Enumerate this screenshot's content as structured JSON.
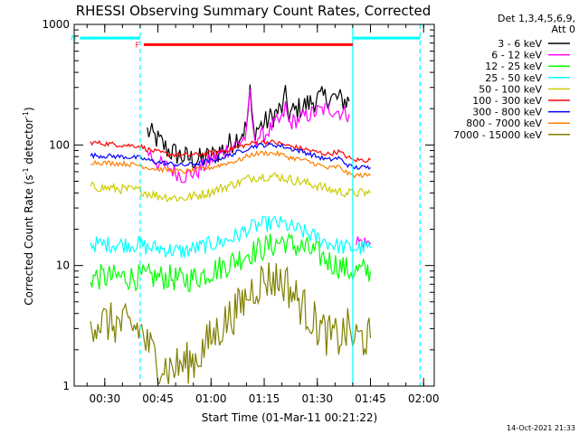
{
  "chart_data": {
    "type": "line",
    "title": "RHESSI Observing Summary Count Rates, Corrected",
    "xlabel": "Start Time (01-Mar-11 00:21:22)",
    "ylabel_prefix": "Corrected Count Rate (s",
    "ylabel_sup1": "-1",
    "ylabel_mid": " detector",
    "ylabel_sup2": "-1",
    "ylabel_suffix": ")",
    "xlim": [
      "00:21:22",
      "02:03:00"
    ],
    "ylim": [
      1,
      1000
    ],
    "yscale": "log",
    "xticks": [
      "00:30",
      "00:45",
      "01:00",
      "01:15",
      "01:30",
      "01:45",
      "02:00"
    ],
    "yticks": [
      {
        "label": "1000",
        "value": 1000
      },
      {
        "label": "100",
        "value": 100
      },
      {
        "label": "10",
        "value": 10
      },
      {
        "label": "1",
        "value": 1
      }
    ],
    "legend_header": [
      "Det 1,3,4,5,6,9,",
      "Att 0"
    ],
    "legend_position": "right",
    "timestamp": "14-Oct-2021 21:33",
    "flags": [
      {
        "label": "F",
        "color": "#ff0000",
        "start": "00:41",
        "end": "01:40",
        "level": 680
      },
      {
        "label": "N",
        "color": "#00ffff",
        "start": "00:23",
        "end": "00:40",
        "level": 770
      },
      {
        "label": "",
        "color": "#00ffff",
        "start": "01:40",
        "end": "01:59",
        "level": 770
      }
    ],
    "markers": [
      {
        "time": "00:40",
        "style": "dashed",
        "color": "#00ffff"
      },
      {
        "time": "01:40",
        "style": "solid",
        "color": "#00ffff"
      },
      {
        "time": "01:59",
        "style": "dashed",
        "color": "#00ffff"
      }
    ],
    "x_times": [
      "00:26",
      "00:35",
      "00:40",
      "00:42",
      "00:45",
      "00:48",
      "00:52",
      "00:56",
      "01:00",
      "01:04",
      "01:08",
      "01:10",
      "01:11",
      "01:12",
      "01:15",
      "01:18",
      "01:20",
      "01:21",
      "01:22",
      "01:26",
      "01:30",
      "01:33",
      "01:36",
      "01:39",
      "01:40",
      "01:41",
      "01:45"
    ],
    "series": [
      {
        "name": "3 - 6 keV",
        "color": "#000000",
        "noise": 0.1,
        "values": [
          null,
          null,
          null,
          130,
          110,
          90,
          80,
          75,
          80,
          95,
          120,
          140,
          270,
          130,
          150,
          180,
          200,
          250,
          180,
          210,
          240,
          250,
          240,
          230,
          null,
          null,
          null
        ]
      },
      {
        "name": "6 - 12 keV",
        "color": "#ff00ff",
        "noise": 0.07,
        "values": [
          null,
          null,
          null,
          90,
          70,
          65,
          55,
          60,
          75,
          90,
          105,
          120,
          280,
          115,
          120,
          150,
          160,
          210,
          150,
          170,
          190,
          200,
          190,
          180,
          null,
          16,
          15
        ]
      },
      {
        "name": "12 - 25 keV",
        "color": "#00ff00",
        "noise": 0.11,
        "values": [
          8,
          8,
          8,
          8,
          8,
          8,
          7.5,
          8,
          9,
          10,
          11.5,
          12.5,
          13,
          13,
          14,
          15,
          16,
          16,
          15,
          14,
          12.5,
          11,
          10,
          9,
          9,
          9,
          9
        ]
      },
      {
        "name": "25 - 50 keV",
        "color": "#00ffff",
        "noise": 0.07,
        "values": [
          15,
          15,
          15,
          14,
          14,
          13.5,
          13,
          14,
          15,
          16,
          18,
          20,
          20,
          21,
          22,
          22.5,
          22,
          22,
          21,
          19,
          17,
          15.5,
          14.5,
          14,
          14,
          14,
          14
        ]
      },
      {
        "name": "50 - 100 keV",
        "color": "#cccc00",
        "noise": 0.04,
        "values": [
          45,
          43,
          42,
          40,
          38,
          37,
          36,
          38,
          41,
          45,
          49,
          52,
          53,
          54,
          55,
          55,
          54,
          53,
          52,
          49,
          46,
          43,
          41,
          40,
          40,
          40,
          40
        ]
      },
      {
        "name": "100 - 300 keV",
        "color": "#ff0000",
        "noise": 0.02,
        "values": [
          105,
          100,
          98,
          92,
          87,
          84,
          82,
          83,
          86,
          90,
          97,
          100,
          102,
          104,
          106,
          105,
          102,
          100,
          98,
          93,
          87,
          84,
          88,
          78,
          75,
          75,
          75
        ]
      },
      {
        "name": "300 - 800 keV",
        "color": "#0000ff",
        "noise": 0.02,
        "values": [
          82,
          80,
          78,
          75,
          72,
          70,
          68,
          70,
          74,
          80,
          88,
          93,
          95,
          98,
          100,
          100,
          98,
          96,
          94,
          88,
          80,
          75,
          78,
          67,
          65,
          65,
          65
        ]
      },
      {
        "name": "800 - 7000 keV",
        "color": "#ff8000",
        "noise": 0.02,
        "values": [
          72,
          70,
          68,
          65,
          63,
          62,
          60,
          62,
          65,
          70,
          75,
          80,
          82,
          84,
          86,
          85,
          83,
          81,
          79,
          75,
          69,
          64,
          66,
          57,
          56,
          56,
          56
        ]
      },
      {
        "name": "7000 - 15000 keV",
        "color": "#808000",
        "noise": 0.18,
        "values": [
          3.5,
          3.2,
          3.0,
          2.2,
          1.6,
          1.4,
          1.5,
          1.7,
          2.5,
          3.4,
          4.5,
          5.5,
          6,
          6.6,
          7.7,
          7.7,
          7.5,
          7.3,
          6.5,
          4.5,
          3.2,
          2.6,
          2.5,
          3.0,
          2.5,
          2.5,
          2.5
        ]
      }
    ]
  }
}
